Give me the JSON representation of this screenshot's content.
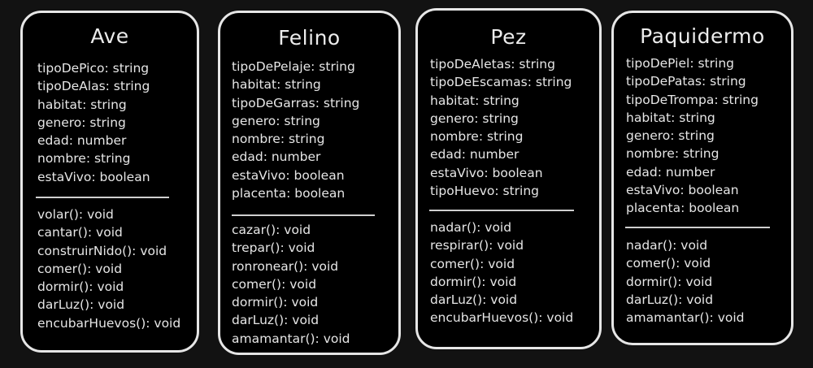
{
  "classes": [
    {
      "name": "Ave",
      "attributes": [
        "tipoDePico: string",
        "tipoDeAlas: string",
        "habitat: string",
        "genero: string",
        "edad: number",
        "nombre: string",
        "estaVivo: boolean"
      ],
      "methods": [
        "volar(): void",
        "cantar(): void",
        "construirNido(): void",
        "comer(): void",
        "dormir(): void",
        "darLuz(): void",
        "encubarHuevos(): void"
      ]
    },
    {
      "name": "Felino",
      "attributes": [
        "tipoDePelaje: string",
        "habitat: string",
        "tipoDeGarras: string",
        "genero: string",
        "nombre: string",
        "edad: number",
        "estaVivo: boolean",
        "placenta: boolean"
      ],
      "methods": [
        "cazar(): void",
        "trepar(): void",
        "ronronear(): void",
        "comer(): void",
        "dormir(): void",
        "darLuz(): void",
        "amamantar(): void"
      ]
    },
    {
      "name": "Pez",
      "attributes": [
        "tipoDeAletas: string",
        "tipoDeEscamas: string",
        "habitat: string",
        "genero: string",
        "nombre: string",
        "edad: number",
        "estaVivo: boolean",
        "tipoHuevo: string"
      ],
      "methods": [
        "nadar(): void",
        "respirar(): void",
        "comer(): void",
        "dormir(): void",
        "darLuz(): void",
        "encubarHuevos(): void"
      ]
    },
    {
      "name": "Paquidermo",
      "attributes": [
        "tipoDePiel: string",
        "tipoDePatas: string",
        "tipoDeTrompa: string",
        "habitat: string",
        "genero: string",
        "nombre: string",
        "edad: number",
        "estaVivo: boolean",
        "placenta: boolean"
      ],
      "methods": [
        "nadar(): void",
        "comer(): void",
        "dormir(): void",
        "darLuz(): void",
        "amamantar(): void"
      ]
    }
  ]
}
